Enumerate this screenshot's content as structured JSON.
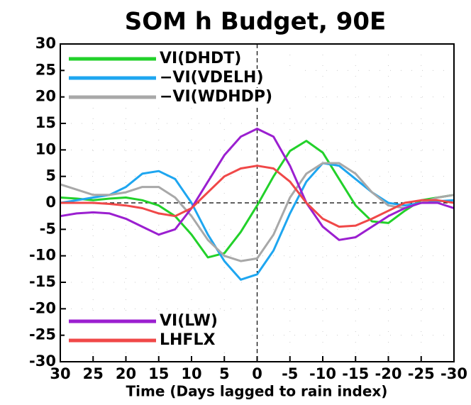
{
  "chart_data": {
    "type": "line",
    "title": "SOM h Budget, 90E",
    "x_label": "Time (Days lagged to rain index)",
    "x": [
      30,
      27.5,
      25,
      22.5,
      20,
      17.5,
      15,
      12.5,
      10,
      7.5,
      5,
      2.5,
      0,
      -2.5,
      -5,
      -7.5,
      -10,
      -12.5,
      -15,
      -17.5,
      -20,
      -22.5,
      -25,
      -27.5,
      -30
    ],
    "xlim": [
      30,
      -30
    ],
    "xticks": [
      30,
      25,
      20,
      15,
      10,
      5,
      0,
      -5,
      -10,
      -15,
      -20,
      -25,
      -30
    ],
    "ylim": [
      -30,
      30
    ],
    "yticks": [
      -30,
      -25,
      -20,
      -15,
      -10,
      -5,
      0,
      5,
      10,
      15,
      20,
      25,
      30
    ],
    "grid": true,
    "series": [
      {
        "name": "VI(DHDT)",
        "color": "#22d12a",
        "values": [
          1,
          0.8,
          0.5,
          0.8,
          1,
          0.5,
          -0.5,
          -2.5,
          -6,
          -10.3,
          -9.5,
          -5.5,
          -0.5,
          5,
          9.8,
          11.7,
          9.5,
          4.5,
          -0.5,
          -3.5,
          -3.8,
          -1.5,
          0.5,
          1,
          1.5
        ]
      },
      {
        "name": "−VI(VDELH)",
        "color": "#1ea6f0",
        "values": [
          0,
          0.5,
          1,
          1.5,
          3,
          5.5,
          6,
          4.5,
          0,
          -6,
          -11,
          -14.5,
          -13.5,
          -9,
          -2,
          4,
          7.5,
          7,
          4.5,
          2,
          0,
          -0.5,
          0,
          0.3,
          0.5
        ]
      },
      {
        "name": "−VI(WDHDP)",
        "color": "#a8a8a8",
        "values": [
          3.5,
          2.5,
          1.5,
          1.5,
          2,
          3,
          3,
          1,
          -2.5,
          -7,
          -10,
          -11,
          -10.5,
          -6,
          1,
          5.5,
          7.5,
          7.5,
          5.5,
          2,
          -0.5,
          -1,
          0,
          1,
          1.5
        ]
      },
      {
        "name": "VI(LW)",
        "color": "#9b1fd0",
        "values": [
          -2.5,
          -2,
          -1.8,
          -2,
          -3,
          -4.5,
          -6,
          -5,
          -1,
          4,
          9,
          12.5,
          14,
          12.5,
          7,
          0,
          -4.5,
          -7,
          -6.5,
          -4.5,
          -2.5,
          -1,
          0,
          0,
          -1
        ]
      },
      {
        "name": "LHFLX",
        "color": "#f04848",
        "values": [
          0,
          0,
          0,
          -0.2,
          -0.5,
          -1,
          -2,
          -2.5,
          -1,
          2,
          5,
          6.5,
          7,
          6.5,
          4,
          0,
          -3,
          -4.5,
          -4.3,
          -3,
          -1.5,
          0,
          0.5,
          0.5,
          0
        ]
      }
    ]
  }
}
